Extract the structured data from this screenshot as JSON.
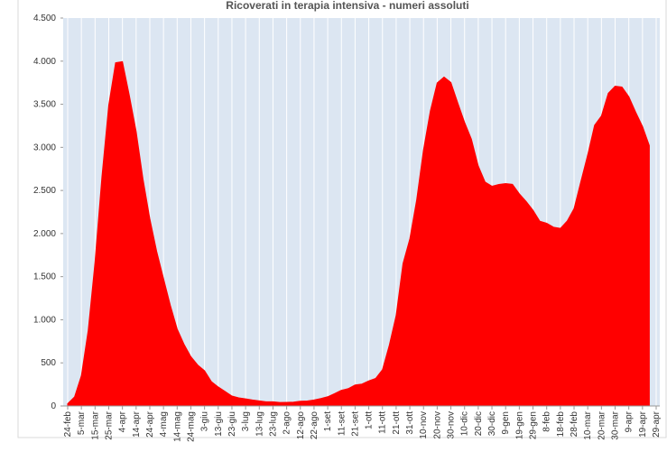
{
  "chart_data": {
    "type": "area",
    "title": "Ricoverati in terapia intensiva - numeri assoluti",
    "color": "#ff0000",
    "background": "#dce6f2",
    "grid": "x",
    "categories": [
      "24-feb",
      null,
      "5-mar",
      null,
      "15-mar",
      null,
      "25-mar",
      null,
      "4-apr",
      null,
      "14-apr",
      null,
      "24-apr",
      null,
      "4-mag",
      null,
      "14-mag",
      null,
      "24-mag",
      null,
      "3-giu",
      null,
      "13-giu",
      null,
      "23-giu",
      null,
      "3-lug",
      null,
      "13-lug",
      null,
      "23-lug",
      null,
      "2-ago",
      null,
      "12-ago",
      null,
      "22-ago",
      null,
      "1-set",
      null,
      "11-set",
      null,
      "21-set",
      null,
      "1-ott",
      null,
      "11-ott",
      null,
      "21-ott",
      null,
      "31-ott",
      null,
      "10-nov",
      null,
      "20-nov",
      null,
      "30-nov",
      null,
      "10-dic",
      null,
      "20-dic",
      null,
      "30-dic",
      null,
      "9-gen",
      null,
      "19-gen",
      null,
      "29-gen",
      null,
      "8-feb",
      null,
      "18-feb",
      null,
      "28-feb",
      null,
      "10-mar",
      null,
      "20-mar",
      null,
      "30-mar",
      null,
      "9-apr",
      null,
      "19-apr",
      null,
      "29-apr"
    ],
    "values": [
      27,
      105,
      351,
      877,
      1672,
      2655,
      3489,
      3981,
      3994,
      3605,
      3186,
      2635,
      2173,
      1795,
      1479,
      1168,
      893,
      716,
      572,
      475,
      408,
      283,
      220,
      168,
      115,
      94,
      82,
      69,
      59,
      49,
      48,
      40,
      42,
      45,
      55,
      58,
      69,
      86,
      107,
      143,
      182,
      201,
      244,
      254,
      291,
      319,
      420,
      705,
      1049,
      1651,
      1939,
      2391,
      2971,
      3422,
      3748,
      3816,
      3753,
      3517,
      3291,
      3095,
      2784,
      2597,
      2549,
      2569,
      2579,
      2571,
      2461,
      2372,
      2270,
      2143,
      2120,
      2074,
      2060,
      2146,
      2289,
      2605,
      2914,
      3256,
      3364,
      3628,
      3710,
      3700,
      3588,
      3409,
      3244,
      3021,
      null
    ],
    "ylim": [
      0,
      4500
    ],
    "yticks": [
      0,
      500,
      {
        "value": 1000,
        "label": "1.000"
      },
      {
        "value": 1500,
        "label": "1.500"
      },
      {
        "value": 2000,
        "label": "2.000"
      },
      {
        "value": 2500,
        "label": "2.500"
      },
      {
        "value": 3000,
        "label": "3.000"
      },
      {
        "value": 3500,
        "label": "3.500"
      },
      {
        "value": 4000,
        "label": "4.000"
      },
      {
        "value": 4500,
        "label": "4.500"
      }
    ]
  }
}
